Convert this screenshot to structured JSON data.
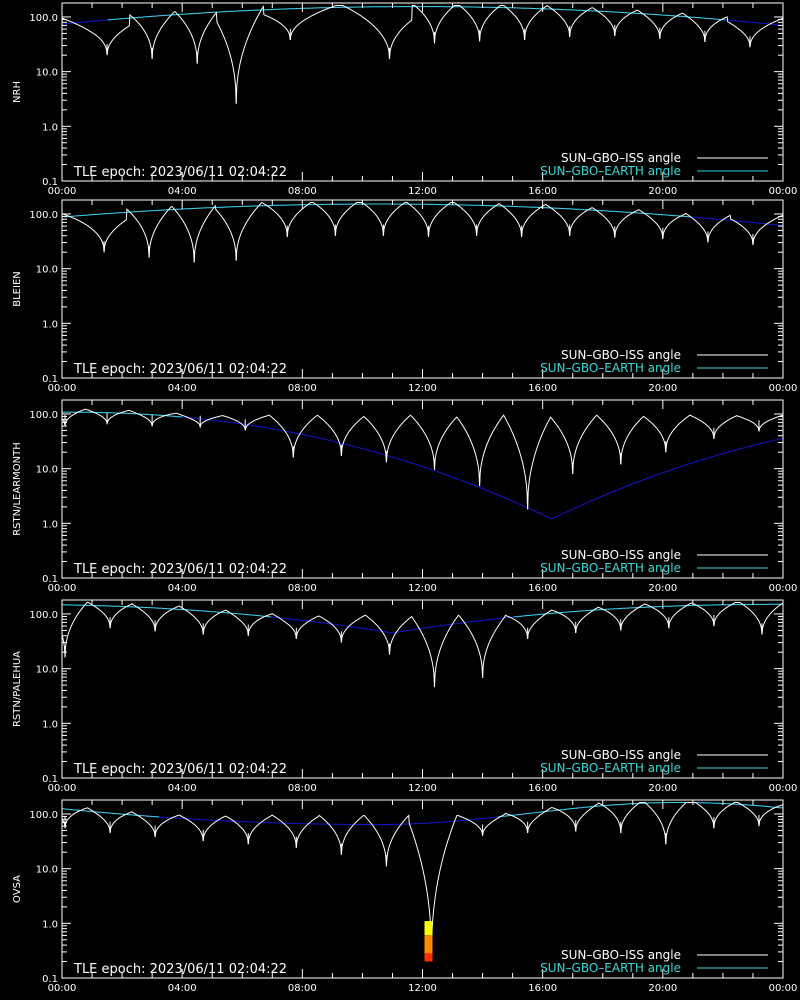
{
  "colors": {
    "background": "#000000",
    "frame": "#ffffff",
    "iss_line": "#ffffff",
    "earth_line_dark": "#1414d2",
    "earth_line_light": "#3ad6d6",
    "iss_legend_text": "#ffffff",
    "earth_legend_text": "#3ad6d6",
    "event_bar_top": "#ffff00",
    "event_bar_mid": "#ff8a00",
    "event_bar_low": "#ff3000"
  },
  "chart_data": [
    {
      "type": "line",
      "ylabel": "NRH",
      "epoch_text": "TLE epoch: 2023/06/11 02:04:22",
      "legend": [
        "SUN–GBO–ISS angle",
        "SUN–GBO–EARTH angle"
      ],
      "yscale": "log",
      "ylim": [
        0.1,
        180
      ],
      "xlim_hours": [
        0,
        24
      ],
      "x_ticks": [
        "00:00",
        "04:00",
        "08:00",
        "12:00",
        "16:00",
        "20:00",
        "00:00"
      ],
      "y_ticks": [
        "0.1",
        "1.0",
        "10.0",
        "100.0"
      ],
      "earth_angle": {
        "peak_hour": 11.8,
        "peak_value": 155,
        "edge_value": 72
      },
      "iss_dips": [
        [
          1.5,
          20
        ],
        [
          3.0,
          17
        ],
        [
          4.5,
          14
        ],
        [
          5.8,
          2.6
        ],
        [
          7.6,
          38
        ],
        [
          10.9,
          17
        ],
        [
          12.4,
          33
        ],
        [
          13.9,
          36
        ],
        [
          15.4,
          38
        ],
        [
          16.9,
          43
        ],
        [
          18.4,
          45
        ],
        [
          19.9,
          40
        ],
        [
          21.4,
          35
        ],
        [
          22.9,
          28
        ]
      ]
    },
    {
      "type": "line",
      "ylabel": "BLEIEN",
      "epoch_text": "TLE epoch: 2023/06/11 02:04:22",
      "legend": [
        "SUN–GBO–ISS angle",
        "SUN–GBO–EARTH angle"
      ],
      "yscale": "log",
      "ylim": [
        0.1,
        180
      ],
      "xlim_hours": [
        0,
        24
      ],
      "x_ticks": [
        "00:00",
        "04:00",
        "08:00",
        "12:00",
        "16:00",
        "20:00",
        "00:00"
      ],
      "y_ticks": [
        "0.1",
        "1.0",
        "10.0",
        "100.0"
      ],
      "earth_angle": {
        "peak_hour": 10.5,
        "peak_value": 152,
        "edge_value": 74
      },
      "iss_dips": [
        [
          1.4,
          20
        ],
        [
          2.9,
          16
        ],
        [
          4.4,
          13
        ],
        [
          5.8,
          14
        ],
        [
          7.5,
          38
        ],
        [
          9.1,
          40
        ],
        [
          10.7,
          40
        ],
        [
          12.2,
          38
        ],
        [
          13.8,
          40
        ],
        [
          15.3,
          38
        ],
        [
          16.9,
          40
        ],
        [
          18.4,
          37
        ],
        [
          20.0,
          35
        ],
        [
          21.5,
          30
        ],
        [
          23.0,
          27
        ]
      ]
    },
    {
      "type": "line",
      "ylabel": "RSTN/LEARMONTH",
      "epoch_text": "TLE epoch: 2023/06/11 02:04:22",
      "legend": [
        "SUN–GBO–ISS angle",
        "SUN–GBO–EARTH angle"
      ],
      "yscale": "log",
      "ylim": [
        0.1,
        180
      ],
      "xlim_hours": [
        0,
        24
      ],
      "x_ticks": [
        "00:00",
        "04:00",
        "08:00",
        "12:00",
        "16:00",
        "20:00",
        "00:00"
      ],
      "y_ticks": [
        "0.1",
        "1.0",
        "10.0",
        "100.0"
      ],
      "earth_angle": {
        "min_hour": 16.3,
        "min_value": 1.2,
        "edge_value": 108
      },
      "iss_dips": [
        [
          0.1,
          60
        ],
        [
          1.5,
          65
        ],
        [
          3.0,
          60
        ],
        [
          4.6,
          58
        ],
        [
          6.1,
          50
        ],
        [
          7.7,
          16
        ],
        [
          9.3,
          17
        ],
        [
          10.8,
          13
        ],
        [
          12.4,
          9.5
        ],
        [
          13.9,
          4.8
        ],
        [
          15.5,
          1.8
        ],
        [
          17.0,
          8.0
        ],
        [
          18.6,
          12
        ],
        [
          20.1,
          20
        ],
        [
          21.7,
          35
        ],
        [
          23.2,
          48
        ]
      ]
    },
    {
      "type": "line",
      "ylabel": "RSTN/PALEHUA",
      "epoch_text": "TLE epoch: 2023/06/11 02:04:22",
      "legend": [
        "SUN–GBO–ISS angle",
        "SUN–GBO–EARTH angle"
      ],
      "yscale": "log",
      "ylim": [
        0.1,
        180
      ],
      "xlim_hours": [
        0,
        24
      ],
      "x_ticks": [
        "00:00",
        "04:00",
        "08:00",
        "12:00",
        "16:00",
        "20:00",
        "00:00"
      ],
      "y_ticks": [
        "0.1",
        "1.0",
        "10.0",
        "100.0"
      ],
      "earth_angle": {
        "min_hour": 11.0,
        "min_value": 45,
        "edge_value": 150
      },
      "iss_dips": [
        [
          0.1,
          16
        ],
        [
          1.6,
          55
        ],
        [
          3.1,
          48
        ],
        [
          4.7,
          42
        ],
        [
          6.2,
          40
        ],
        [
          7.8,
          35
        ],
        [
          9.3,
          30
        ],
        [
          10.9,
          18
        ],
        [
          12.4,
          4.6
        ],
        [
          14.0,
          6.8
        ],
        [
          15.5,
          35
        ],
        [
          17.1,
          45
        ],
        [
          18.6,
          50
        ],
        [
          20.2,
          55
        ],
        [
          21.7,
          60
        ],
        [
          23.3,
          42
        ]
      ]
    },
    {
      "type": "line",
      "ylabel": "OVSA",
      "epoch_text": "TLE epoch: 2023/06/11 02:04:22",
      "legend": [
        "SUN–GBO–ISS angle",
        "SUN–GBO–EARTH angle"
      ],
      "yscale": "log",
      "ylim": [
        0.1,
        180
      ],
      "xlim_hours": [
        0,
        24
      ],
      "x_ticks": [
        "00:00",
        "04:00",
        "08:00",
        "12:00",
        "16:00",
        "20:00",
        "00:00"
      ],
      "y_ticks": [
        "0.1",
        "1.0",
        "10.0",
        "100.0"
      ],
      "earth_angle": {
        "min_hour": 10.5,
        "min_value": 64,
        "edge_value": 125,
        "peak_hour": 20.5,
        "peak_value": 162
      },
      "iss_dips": [
        [
          0.1,
          55
        ],
        [
          1.6,
          45
        ],
        [
          3.1,
          38
        ],
        [
          4.7,
          32
        ],
        [
          6.2,
          28
        ],
        [
          7.8,
          24
        ],
        [
          9.3,
          18
        ],
        [
          10.8,
          11
        ],
        [
          12.3,
          0.25
        ],
        [
          14.0,
          40
        ],
        [
          15.5,
          45
        ],
        [
          17.1,
          48
        ],
        [
          18.6,
          45
        ],
        [
          20.1,
          28
        ],
        [
          21.7,
          55
        ],
        [
          23.2,
          60
        ]
      ],
      "event_bar": {
        "hour": 12.2,
        "ymin": 0.2,
        "ymax": 1.1
      }
    }
  ]
}
